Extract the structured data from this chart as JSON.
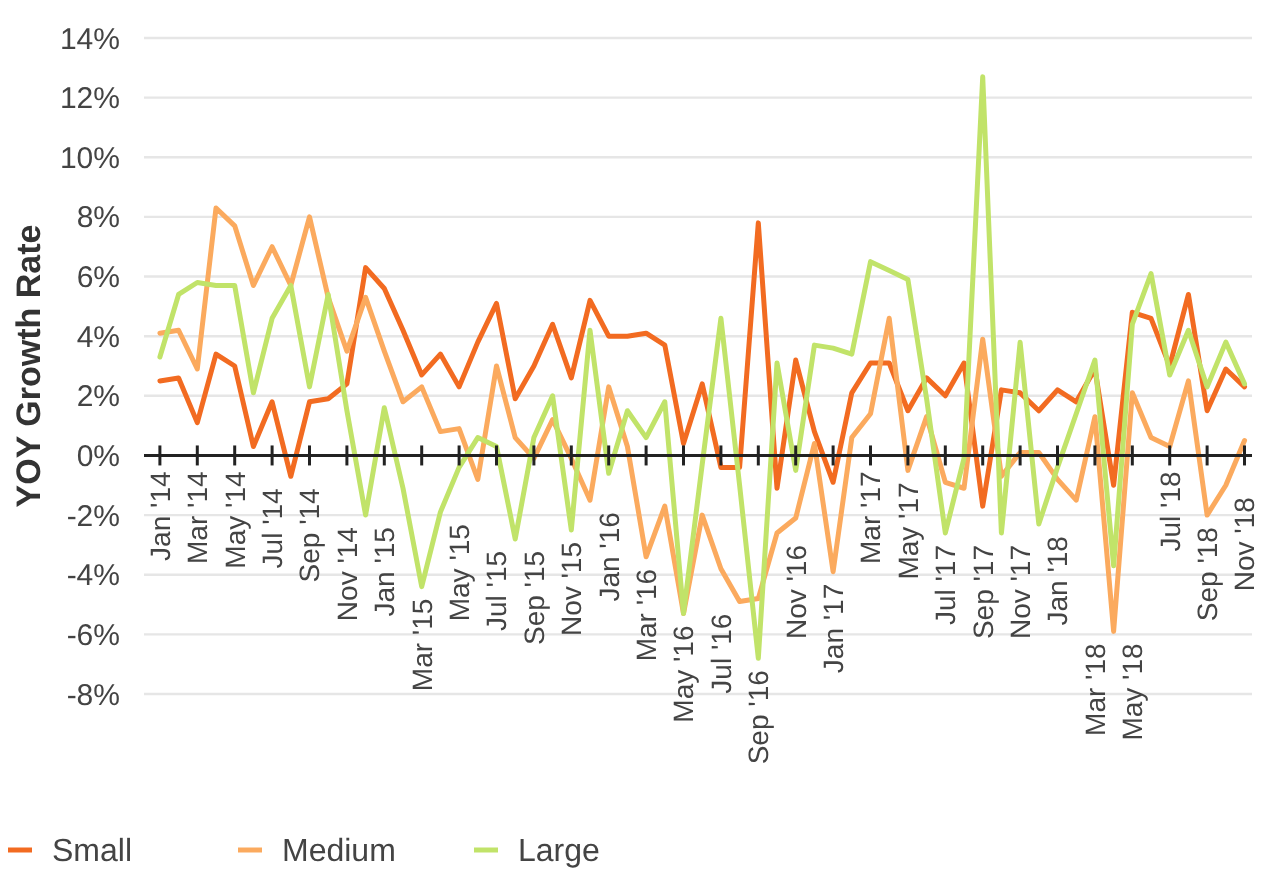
{
  "chart_data": {
    "type": "line",
    "ylabel": "YOY Growth Rate",
    "categories": [
      "Jan '14",
      null,
      "Mar '14",
      null,
      "May '14",
      null,
      "Jul '14",
      null,
      "Sep '14",
      null,
      "Nov '14",
      null,
      "Jan '15",
      null,
      "Mar '15",
      null,
      "May '15",
      null,
      "Jul '15",
      null,
      "Sep '15",
      null,
      "Nov '15",
      null,
      "Jan '16",
      null,
      "Mar '16",
      null,
      "May '16",
      null,
      "Jul '16",
      null,
      "Sep '16",
      null,
      "Nov '16",
      null,
      "Jan '17",
      null,
      "Mar '17",
      null,
      "May '17",
      null,
      "Jul '17",
      null,
      "Sep '17",
      null,
      "Nov '17",
      null,
      "Jan '18",
      null,
      "Mar '18",
      null,
      "May '18",
      null,
      "Jul '18",
      null,
      "Sep '18",
      null,
      "Nov '18"
    ],
    "series": [
      {
        "name": "Small",
        "color": "#f26b21",
        "values": [
          2.5,
          2.6,
          1.1,
          3.4,
          3.0,
          0.3,
          1.8,
          -0.7,
          1.8,
          1.9,
          2.4,
          6.3,
          5.6,
          4.2,
          2.7,
          3.4,
          2.3,
          3.8,
          5.1,
          1.9,
          3.0,
          4.4,
          2.6,
          5.2,
          4.0,
          4.0,
          4.1,
          3.7,
          0.4,
          2.4,
          -0.4,
          -0.4,
          7.8,
          -1.1,
          3.2,
          0.8,
          -0.9,
          2.1,
          3.1,
          3.1,
          1.5,
          2.6,
          2.0,
          3.1,
          -1.7,
          2.2,
          2.1,
          1.5,
          2.2,
          1.8,
          2.9,
          -1.0,
          4.8,
          4.6,
          3.0,
          5.4,
          1.5,
          2.9,
          2.3
        ]
      },
      {
        "name": "Medium",
        "color": "#fbaa5e",
        "values": [
          4.1,
          4.2,
          2.9,
          8.3,
          7.7,
          5.7,
          7.0,
          5.7,
          8.0,
          5.3,
          3.5,
          5.3,
          3.5,
          1.8,
          2.3,
          0.8,
          0.9,
          -0.8,
          3.0,
          0.6,
          -0.1,
          1.2,
          -0.1,
          -1.5,
          2.3,
          0.3,
          -3.4,
          -1.7,
          -5.3,
          -2.0,
          -3.8,
          -4.9,
          -4.8,
          -2.6,
          -2.1,
          0.4,
          -3.9,
          0.6,
          1.4,
          4.6,
          -0.5,
          1.3,
          -0.9,
          -1.1,
          3.9,
          -0.7,
          0.1,
          0.1,
          -0.8,
          -1.5,
          1.3,
          -5.9,
          2.1,
          0.6,
          0.3,
          2.5,
          -2.0,
          -1.0,
          0.5
        ]
      },
      {
        "name": "Large",
        "color": "#c1e369",
        "values": [
          3.3,
          5.4,
          5.8,
          5.7,
          5.7,
          2.1,
          4.6,
          5.7,
          2.3,
          5.4,
          1.5,
          -2.0,
          1.6,
          -1.1,
          -4.4,
          -1.9,
          -0.4,
          0.6,
          0.3,
          -2.8,
          0.6,
          2.0,
          -2.5,
          4.2,
          -0.6,
          1.5,
          0.6,
          1.8,
          -5.3,
          -0.3,
          4.6,
          -1.0,
          -6.8,
          3.1,
          -0.5,
          3.7,
          3.6,
          3.4,
          6.5,
          6.2,
          5.9,
          1.9,
          -2.6,
          -0.1,
          12.7,
          -2.6,
          3.8,
          -2.3,
          -0.4,
          1.4,
          3.2,
          -3.7,
          4.4,
          6.1,
          2.7,
          4.2,
          2.3,
          3.8,
          2.4
        ]
      }
    ],
    "ylim": [
      -8,
      14
    ],
    "yticks": [
      {
        "value": -8,
        "label": "-8%"
      },
      {
        "value": -6,
        "label": "-6%"
      },
      {
        "value": -4,
        "label": "-4%"
      },
      {
        "value": -2,
        "label": "-2%"
      },
      {
        "value": 0,
        "label": "0%"
      },
      {
        "value": 2,
        "label": "2%"
      },
      {
        "value": 4,
        "label": "4%"
      },
      {
        "value": 6,
        "label": "6%"
      },
      {
        "value": 8,
        "label": "8%"
      },
      {
        "value": 10,
        "label": "10%"
      },
      {
        "value": 12,
        "label": "12%"
      },
      {
        "value": 14,
        "label": "14%"
      }
    ],
    "grid": "y",
    "legend": "bottom left",
    "marker": "none",
    "line_style": "solid"
  }
}
